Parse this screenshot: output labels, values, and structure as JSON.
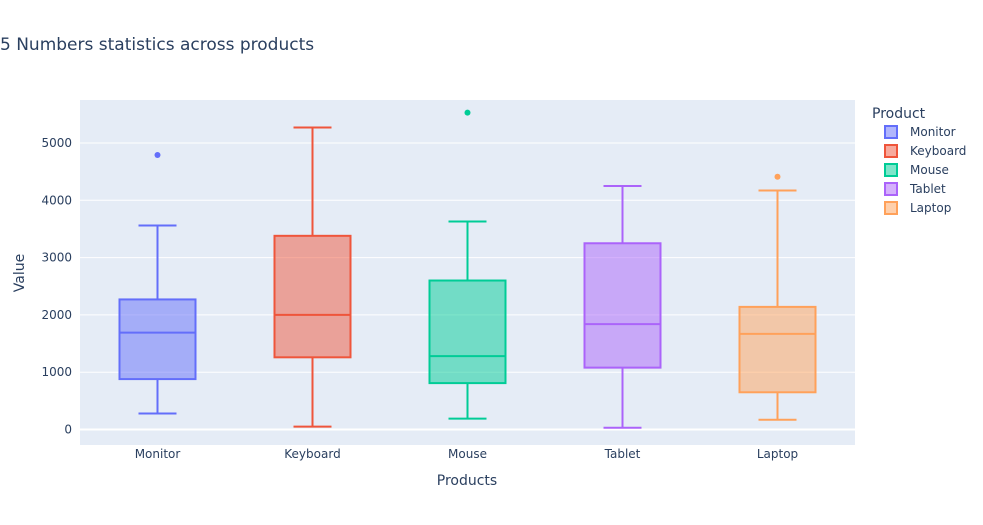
{
  "chart_data": {
    "type": "box",
    "title": "5 Numbers statistics across products",
    "xlabel": "Products",
    "ylabel": "Value",
    "ylim": [
      -270,
      5750
    ],
    "yticks": [
      0,
      1000,
      2000,
      3000,
      4000,
      5000
    ],
    "ytick_labels": [
      "0",
      "1000",
      "2000",
      "3000",
      "4000",
      "5000"
    ],
    "grid": true,
    "legend": {
      "title": "Product",
      "placement": "right"
    },
    "categories": [
      "Monitor",
      "Keyboard",
      "Mouse",
      "Tablet",
      "Laptop"
    ],
    "series": [
      {
        "name": "Monitor",
        "color": "#636efa",
        "min": 280,
        "q1": 880,
        "median": 1690,
        "q3": 2270,
        "max": 3560,
        "outliers": [
          4790
        ]
      },
      {
        "name": "Keyboard",
        "color": "#ef553b",
        "min": 50,
        "q1": 1260,
        "median": 2000,
        "q3": 3380,
        "max": 5270,
        "outliers": []
      },
      {
        "name": "Mouse",
        "color": "#00cc96",
        "min": 190,
        "q1": 810,
        "median": 1280,
        "q3": 2600,
        "max": 3630,
        "outliers": [
          5530
        ]
      },
      {
        "name": "Tablet",
        "color": "#ab63fa",
        "min": 30,
        "q1": 1080,
        "median": 1840,
        "q3": 3250,
        "max": 4250,
        "outliers": []
      },
      {
        "name": "Laptop",
        "color": "#ffa15a",
        "min": 170,
        "q1": 650,
        "median": 1670,
        "q3": 2140,
        "max": 4170,
        "outliers": [
          4410
        ]
      }
    ]
  }
}
